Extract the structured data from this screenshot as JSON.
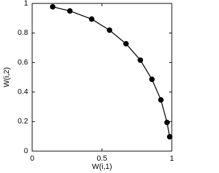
{
  "chart_data": {
    "type": "line",
    "x": [
      0.147,
      0.27,
      0.426,
      0.554,
      0.672,
      0.775,
      0.858,
      0.922,
      0.966,
      0.985
    ],
    "series": [
      {
        "color": "#000000",
        "values": [
          0.977,
          0.949,
          0.894,
          0.819,
          0.727,
          0.616,
          0.486,
          0.347,
          0.194,
          0.097
        ]
      }
    ],
    "xlabel": "W(i,1)",
    "ylabel": "W(i,2)",
    "xlim": [
      0,
      1
    ],
    "ylim": [
      0,
      1
    ],
    "xticks": [
      0,
      0.5,
      1
    ],
    "yticks": [
      0,
      0.2,
      0.4,
      0.6,
      0.8,
      1
    ],
    "grid": false
  }
}
